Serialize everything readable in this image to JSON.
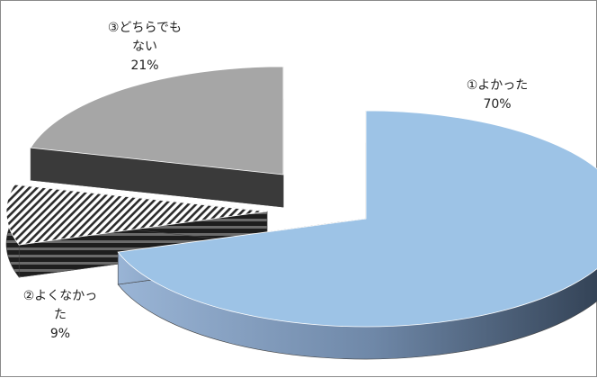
{
  "chart_data": {
    "type": "pie",
    "style": "3d-exploded",
    "categories": [
      "①よかった",
      "②よくなかった",
      "③どちらでもない"
    ],
    "values": [
      70,
      9,
      21
    ],
    "unit": "%",
    "labels": [
      {
        "lines": [
          "①よかった"
        ],
        "value_text": "70%"
      },
      {
        "lines": [
          "②よくなかっ",
          "た"
        ],
        "value_text": "9%"
      },
      {
        "lines": [
          "③どちらでも",
          "ない"
        ],
        "value_text": "21%"
      }
    ],
    "colors": [
      "#9dc3e6",
      "#333333",
      "#a6a6a6"
    ],
    "patterns": [
      "solid",
      "diagonal-hatch",
      "solid"
    ],
    "legend": "none",
    "title": ""
  }
}
